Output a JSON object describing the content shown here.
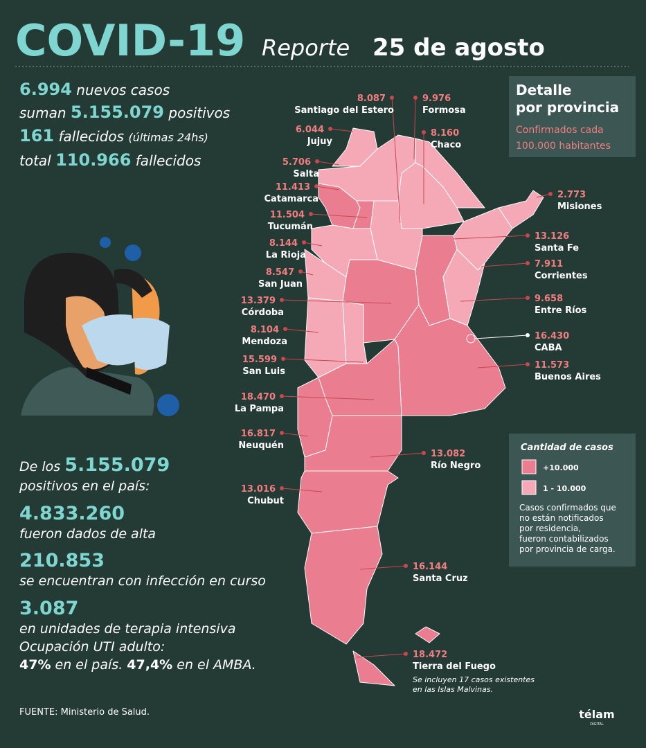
{
  "header": {
    "title": "COVID-19",
    "report": "Reporte",
    "date": "25 de agosto"
  },
  "summary": {
    "new_cases": "6.994",
    "new_cases_text": "nuevos casos",
    "total_prefix": "suman",
    "total_cases": "5.155.079",
    "total_suffix": "positivos",
    "deaths": "161",
    "deaths_text": "fallecidos",
    "deaths_note": "(últimas 24hs)",
    "total_deaths_prefix": "total",
    "total_deaths": "110.966",
    "total_deaths_suffix": "fallecidos"
  },
  "detail": {
    "title_1": "Detalle",
    "title_2": "por provincia",
    "subtitle_1": "Confirmados cada",
    "subtitle_2": "100.000 habitantes"
  },
  "provinces": [
    {
      "name": "Santiago del Estero",
      "value": "8.087"
    },
    {
      "name": "Jujuy",
      "value": "6.044"
    },
    {
      "name": "Salta",
      "value": "5.706"
    },
    {
      "name": "Catamarca",
      "value": "11.413"
    },
    {
      "name": "Tucumán",
      "value": "11.504"
    },
    {
      "name": "La Rioja",
      "value": "8.144"
    },
    {
      "name": "San Juan",
      "value": "8.547"
    },
    {
      "name": "Córdoba",
      "value": "13.379"
    },
    {
      "name": "Mendoza",
      "value": "8.104"
    },
    {
      "name": "San Luis",
      "value": "15.599"
    },
    {
      "name": "La Pampa",
      "value": "18.470"
    },
    {
      "name": "Neuquén",
      "value": "16.817"
    },
    {
      "name": "Chubut",
      "value": "13.016"
    },
    {
      "name": "Formosa",
      "value": "9.976"
    },
    {
      "name": "Chaco",
      "value": "8.160"
    },
    {
      "name": "Misiones",
      "value": "2.773"
    },
    {
      "name": "Santa Fe",
      "value": "13.126"
    },
    {
      "name": "Corrientes",
      "value": "7.911"
    },
    {
      "name": "Entre Ríos",
      "value": "9.658"
    },
    {
      "name": "CABA",
      "value": "16.430"
    },
    {
      "name": "Buenos Aires",
      "value": "11.573"
    },
    {
      "name": "Río Negro",
      "value": "13.082"
    },
    {
      "name": "Santa Cruz",
      "value": "16.144"
    },
    {
      "name": "Tierra del Fuego",
      "value": "18.472"
    }
  ],
  "fuego_note_1": "Se incluyen 17 casos existentes",
  "fuego_note_2": "en las Islas Malvinas.",
  "legend": {
    "title": "Cantidad de casos",
    "items": [
      {
        "label": "+10.000",
        "color": "#ea7d8f"
      },
      {
        "label": "1 - 10.000",
        "color": "#f5a9b6"
      }
    ],
    "note": [
      "Casos confirmados que",
      "no están notificados",
      "por residencia,",
      "fueron contabilizados",
      "por provincia de carga."
    ]
  },
  "stats": {
    "intro_1": "De los",
    "total": "5.155.079",
    "intro_2": "positivos en el país:",
    "recovered": "4.833.260",
    "recovered_text": "fueron dados de alta",
    "active": "210.853",
    "active_text": "se encuentran con infección en curso",
    "icu": "3.087",
    "icu_text": "en unidades de terapia intensiva",
    "icu_occ_text": "Ocupación UTI adulto:",
    "icu_country": "47%",
    "icu_country_text": "en el país.",
    "icu_amba": "47,4%",
    "icu_amba_text": "en el AMBA."
  },
  "footer": {
    "source_label": "FUENTE:",
    "source": "Ministerio de Salud.",
    "brand": "télam",
    "brand_sub": "DIGITAL"
  }
}
